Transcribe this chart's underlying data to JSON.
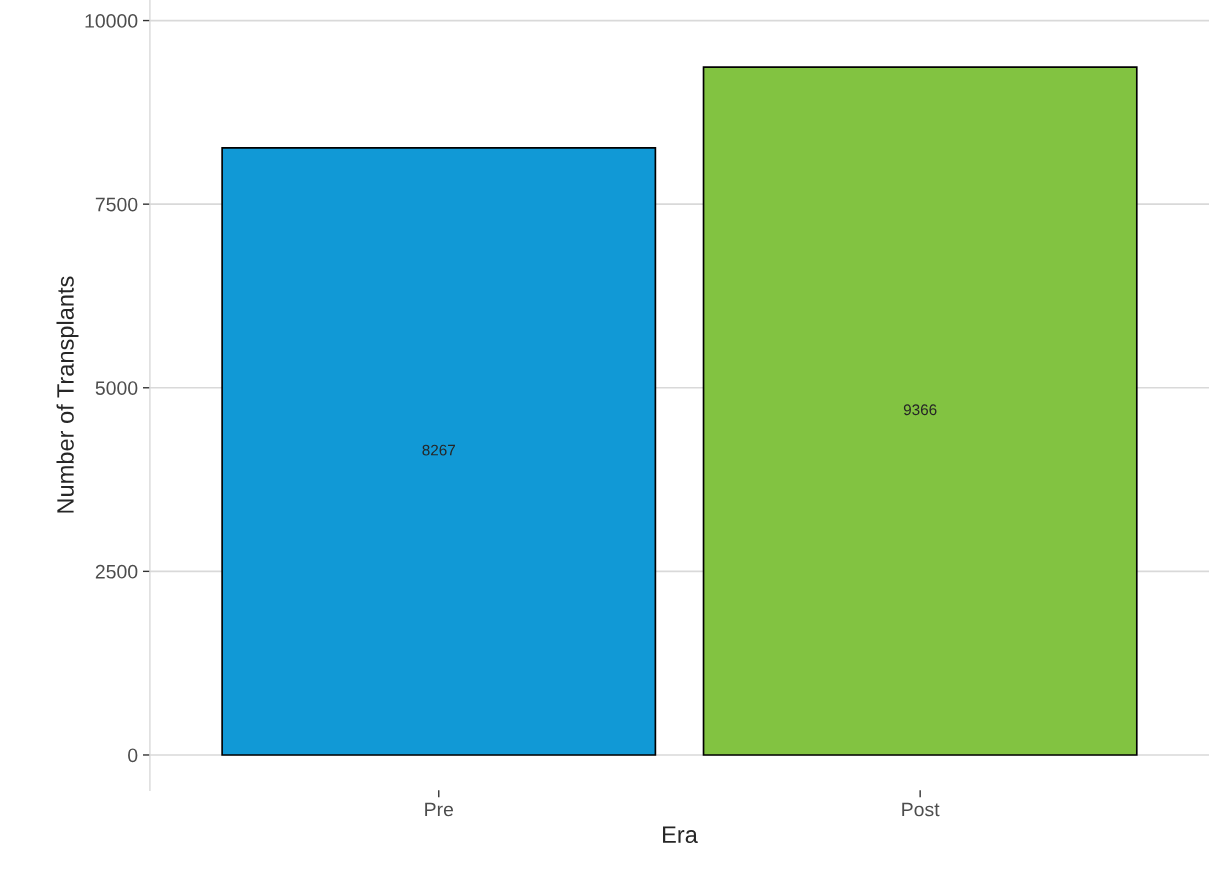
{
  "chart_data": {
    "type": "bar",
    "xlabel": "Era",
    "ylabel": "Number of Transplants",
    "categories": [
      "Pre",
      "Post"
    ],
    "values": [
      8267,
      9366
    ],
    "colors": [
      "#1199d6",
      "#82c341"
    ],
    "ylim": [
      -480,
      10280
    ],
    "yticks": [
      0,
      2500,
      5000,
      7500,
      10000
    ],
    "grid": "y",
    "data_labels": true
  }
}
